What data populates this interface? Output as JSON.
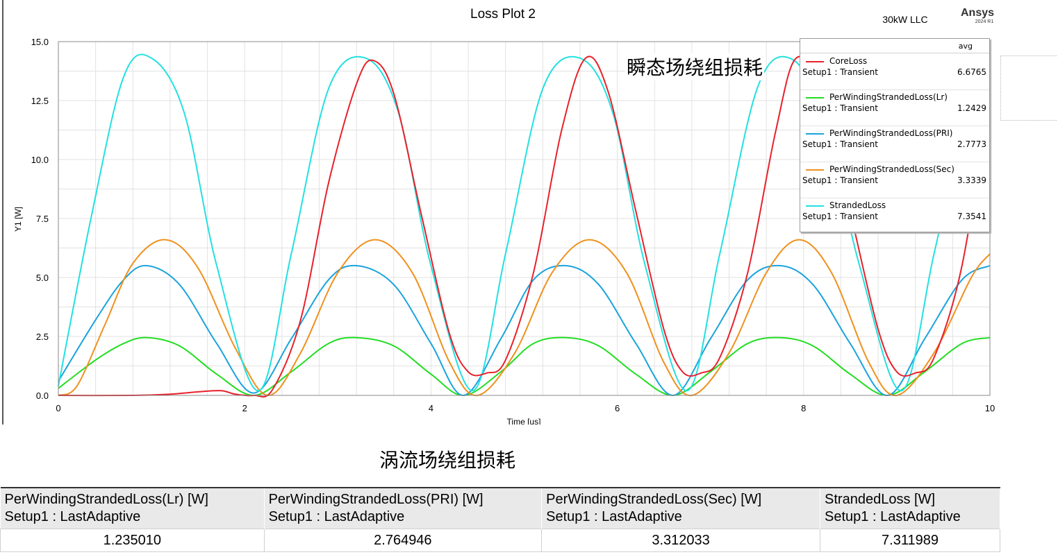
{
  "plot": {
    "title": "Loss Plot 2",
    "design_name": "30kW LLC",
    "brand": "Ansys",
    "brand_version": "2024 R1",
    "annotation": "瞬态场绕组损耗"
  },
  "chart_data": {
    "type": "line",
    "title": "Loss Plot 2",
    "xlabel": "Time [us]",
    "ylabel": "Y1 [W]",
    "xlim": [
      0,
      10
    ],
    "ylim": [
      0,
      15
    ],
    "x_ticks": [
      "0",
      "2",
      "4",
      "6",
      "8",
      "10"
    ],
    "y_ticks": [
      "0.0",
      "2.5",
      "5.0",
      "7.5",
      "10.0",
      "12.5",
      "15.0"
    ],
    "grid": true,
    "legend_position": "top-right",
    "legend_header": "avg",
    "series": [
      {
        "name": "CoreLoss",
        "setup": "Setup1 : Transient",
        "avg": "6.6765",
        "color": "#e8202a",
        "x": [
          0,
          0.8,
          1.2,
          1.5,
          1.75,
          1.9,
          2.1,
          2.3,
          2.6,
          2.9,
          3.2,
          3.38,
          3.6,
          3.9,
          4.2,
          4.4,
          4.6,
          4.8,
          5.1,
          5.4,
          5.66,
          5.9,
          6.2,
          6.5,
          6.7,
          6.9,
          7.1,
          7.4,
          7.7,
          7.92,
          8.2,
          8.5,
          8.8,
          9.0,
          9.2,
          9.4,
          9.7,
          10.0
        ],
        "y": [
          0,
          0,
          0.05,
          0.15,
          0.2,
          0.05,
          0,
          0.25,
          3.2,
          9.0,
          13.2,
          14.2,
          12.8,
          7.6,
          2.6,
          1.0,
          0.95,
          1.5,
          5.2,
          11.2,
          14.3,
          12.9,
          7.8,
          2.8,
          1.0,
          0.95,
          1.6,
          5.2,
          11.2,
          14.3,
          12.9,
          7.8,
          2.8,
          1.0,
          0.95,
          1.6,
          5.5,
          12.8
        ]
      },
      {
        "name": "PerWindingStrandedLoss(Lr)",
        "setup": "Setup1 : Transient",
        "avg": "1.2429",
        "color": "#22dd22",
        "x": [
          0,
          0.4,
          0.7,
          0.95,
          1.3,
          1.7,
          2.1,
          2.5,
          2.9,
          3.2,
          3.6,
          4.0,
          4.35,
          4.75,
          5.1,
          5.45,
          5.8,
          6.2,
          6.6,
          7.0,
          7.4,
          7.75,
          8.1,
          8.5,
          8.9,
          9.3,
          9.7,
          10.0
        ],
        "y": [
          0.3,
          1.5,
          2.2,
          2.45,
          2.1,
          0.9,
          0.0,
          1.0,
          2.2,
          2.45,
          2.1,
          0.9,
          0.0,
          1.0,
          2.2,
          2.45,
          2.1,
          0.9,
          0.0,
          1.0,
          2.2,
          2.45,
          2.1,
          0.9,
          0.0,
          1.0,
          2.2,
          2.45
        ]
      },
      {
        "name": "PerWindingStrandedLoss(PRI)",
        "setup": "Setup1 : Transient",
        "avg": "2.7773",
        "color": "#1aa3dd",
        "x": [
          0,
          0.4,
          0.7,
          0.95,
          1.3,
          1.7,
          2.1,
          2.5,
          2.9,
          3.2,
          3.6,
          4.0,
          4.35,
          4.75,
          5.1,
          5.45,
          5.8,
          6.2,
          6.6,
          7.0,
          7.4,
          7.75,
          8.1,
          8.5,
          8.9,
          9.3,
          9.7,
          10.0
        ],
        "y": [
          0.6,
          3.2,
          4.9,
          5.5,
          4.7,
          2.2,
          0.1,
          2.4,
          4.9,
          5.5,
          4.7,
          2.2,
          0.0,
          2.4,
          4.9,
          5.5,
          4.7,
          2.2,
          0.0,
          2.4,
          4.9,
          5.5,
          4.7,
          2.2,
          0.0,
          2.4,
          4.9,
          5.5
        ]
      },
      {
        "name": "PerWindingStrandedLoss(Sec)",
        "setup": "Setup1 : Transient",
        "avg": "3.3339",
        "color": "#f0901c",
        "x": [
          0,
          0.2,
          0.5,
          0.8,
          1.15,
          1.5,
          1.9,
          2.25,
          2.6,
          3.0,
          3.4,
          3.8,
          4.2,
          4.5,
          4.9,
          5.3,
          5.7,
          6.1,
          6.5,
          6.8,
          7.2,
          7.6,
          7.95,
          8.3,
          8.7,
          9.0,
          9.4,
          9.8,
          10.0
        ],
        "y": [
          0.0,
          0.4,
          3.0,
          5.6,
          6.6,
          5.4,
          2.0,
          0.0,
          1.8,
          5.2,
          6.6,
          5.2,
          1.4,
          0.0,
          1.8,
          5.2,
          6.6,
          5.2,
          1.4,
          0.0,
          1.8,
          5.2,
          6.6,
          5.2,
          1.4,
          0.0,
          1.8,
          5.0,
          6.0
        ]
      },
      {
        "name": "StrandedLoss",
        "setup": "Setup1 : Transient",
        "avg": "7.3541",
        "color": "#22e0e0",
        "x": [
          0,
          0.35,
          0.7,
          1.0,
          1.35,
          1.7,
          2.15,
          2.5,
          2.9,
          3.3,
          3.65,
          4.0,
          4.45,
          4.8,
          5.2,
          5.6,
          5.95,
          6.3,
          6.75,
          7.1,
          7.5,
          7.85,
          8.2,
          8.6,
          9.05,
          9.4,
          9.8,
          10.0
        ],
        "y": [
          0.4,
          7.5,
          13.5,
          14.3,
          12.0,
          5.5,
          0.2,
          6.0,
          13.0,
          14.3,
          12.0,
          5.5,
          0.2,
          6.0,
          13.0,
          14.3,
          12.0,
          5.5,
          0.2,
          6.0,
          13.0,
          14.3,
          12.0,
          5.5,
          0.2,
          6.0,
          13.0,
          14.0
        ]
      }
    ]
  },
  "eddy_section": {
    "title": "涡流场绕组损耗",
    "columns": [
      {
        "header": "PerWindingStrandedLoss(Lr) [W]",
        "setup": "Setup1 : LastAdaptive",
        "value": "1.235010"
      },
      {
        "header": "PerWindingStrandedLoss(PRI) [W]",
        "setup": "Setup1 : LastAdaptive",
        "value": "2.764946"
      },
      {
        "header": "PerWindingStrandedLoss(Sec) [W]",
        "setup": "Setup1 : LastAdaptive",
        "value": "3.312033"
      },
      {
        "header": "StrandedLoss [W]",
        "setup": "Setup1 : LastAdaptive",
        "value": "7.311989"
      }
    ]
  }
}
